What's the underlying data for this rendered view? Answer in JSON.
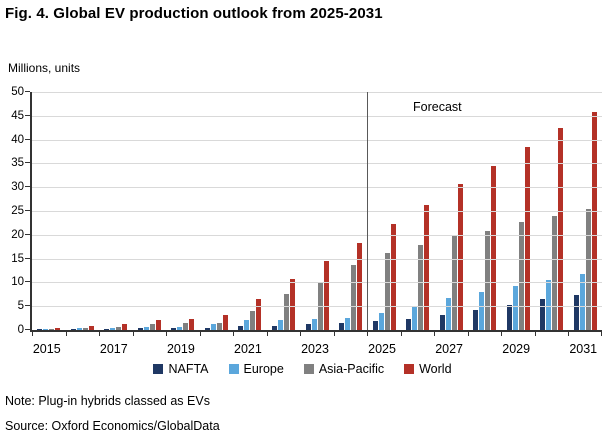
{
  "figure": {
    "title": "Fig. 4. Global EV production outlook from 2025-2031",
    "units_label": "Millions, units",
    "forecast_label": "Forecast",
    "note": "Note: Plug-in hybrids classed as EVs",
    "source": "Source: Oxford Economics/GlobalData"
  },
  "chart_data": {
    "type": "bar",
    "title": "Fig. 4. Global EV production outlook from 2025-2031",
    "ylabel": "Millions, units",
    "ylim": [
      0,
      50
    ],
    "y_tick_step": 5,
    "grid": true,
    "legend_position": "bottom",
    "categories": [
      2015,
      2016,
      2017,
      2018,
      2019,
      2020,
      2021,
      2022,
      2023,
      2024,
      2025,
      2026,
      2027,
      2028,
      2029,
      2030,
      2031
    ],
    "x_tick_labels_shown": [
      "2015",
      "2017",
      "2019",
      "2021",
      "2023",
      "2025",
      "2027",
      "2029",
      "2031"
    ],
    "forecast_boundary_year": 2025,
    "forecast_annotation": "Forecast",
    "series": [
      {
        "name": "NAFTA",
        "color": "#1f3864",
        "values": [
          0.3,
          0.3,
          0.3,
          0.4,
          0.4,
          0.5,
          0.9,
          0.9,
          1.3,
          1.4,
          1.8,
          2.3,
          3.2,
          4.3,
          5.3,
          6.5,
          7.4
        ]
      },
      {
        "name": "Europe",
        "color": "#5ba7dc",
        "values": [
          0.3,
          0.4,
          0.5,
          0.6,
          0.6,
          1.3,
          2.0,
          2.1,
          2.4,
          2.6,
          3.5,
          5.0,
          6.7,
          8.0,
          9.3,
          10.6,
          11.7
        ]
      },
      {
        "name": "Asia-Pacific",
        "color": "#808080",
        "values": [
          0.3,
          0.5,
          0.7,
          1.3,
          1.4,
          1.5,
          4.0,
          7.6,
          10.0,
          13.7,
          16.2,
          17.9,
          19.7,
          20.9,
          22.6,
          23.9,
          25.5
        ]
      },
      {
        "name": "World",
        "color": "#b43127",
        "values": [
          0.5,
          0.9,
          1.3,
          2.1,
          2.3,
          3.2,
          6.6,
          10.8,
          14.5,
          18.3,
          22.3,
          26.2,
          30.7,
          34.5,
          38.5,
          42.4,
          45.9
        ]
      }
    ]
  }
}
